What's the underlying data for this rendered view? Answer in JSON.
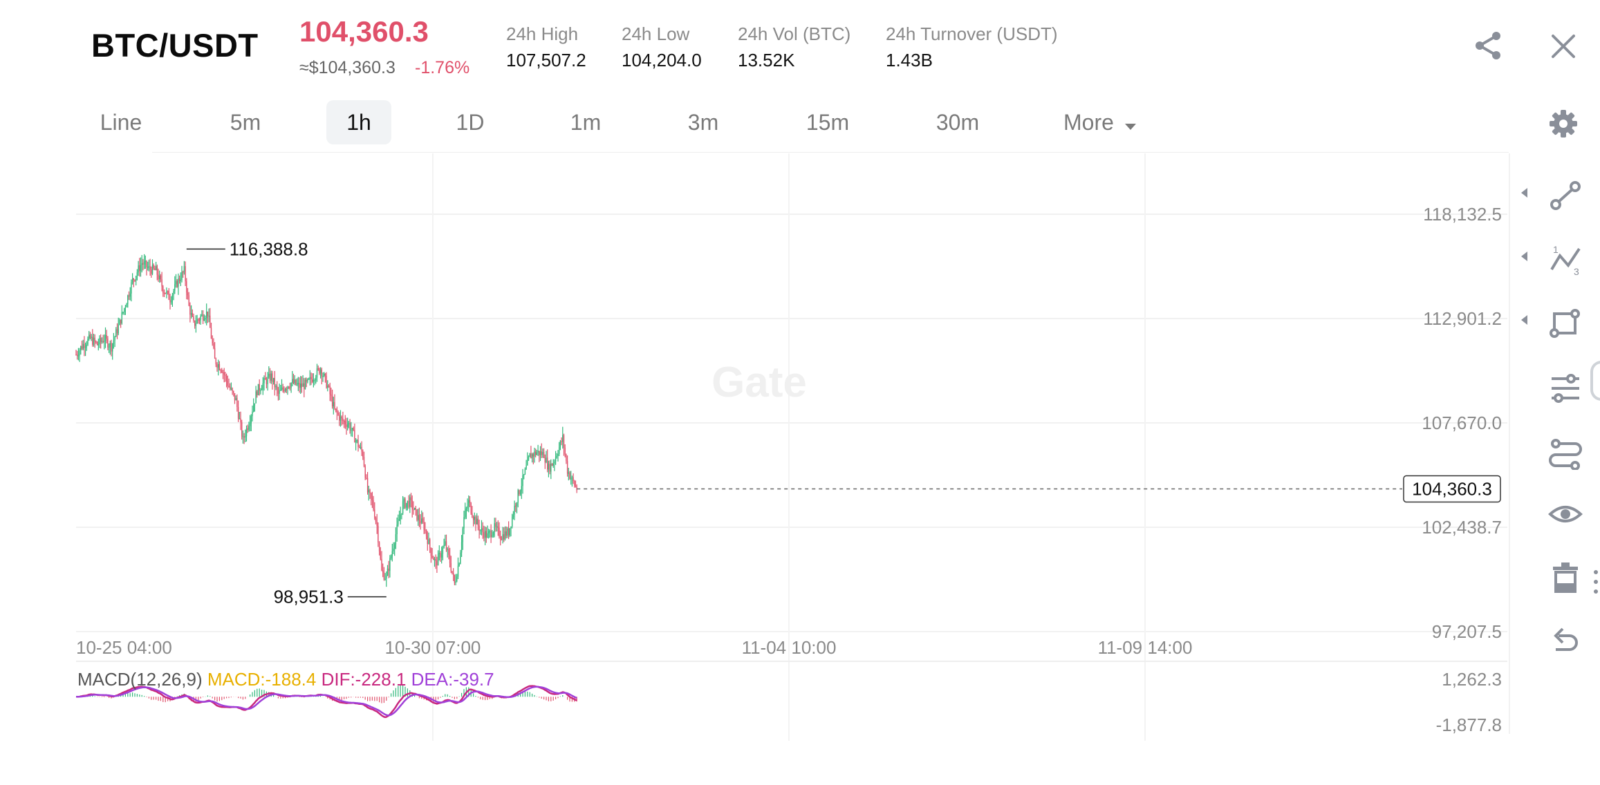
{
  "header": {
    "pair": "BTC/USDT",
    "price": "104,360.3",
    "usd_price": "≈$104,360.3",
    "change": "-1.76%",
    "stats": [
      {
        "label": "24h High",
        "value": "107,507.2"
      },
      {
        "label": "24h Low",
        "value": "104,204.0"
      },
      {
        "label": "24h Vol (BTC)",
        "value": "13.52K"
      },
      {
        "label": "24h Turnover (USDT)",
        "value": "1.43B"
      }
    ]
  },
  "timeframes": [
    "Line",
    "5m",
    "1h",
    "1D",
    "1m",
    "3m",
    "15m",
    "30m",
    "More"
  ],
  "active_timeframe": "1h",
  "icons": {
    "share": "share-icon",
    "close": "close-icon",
    "settings": "gear-icon",
    "tools": [
      "line-tool-icon",
      "fib-tool-icon",
      "shape-tool-icon",
      "indicator-sliders-icon",
      "path-tool-icon",
      "visibility-eye-icon",
      "trash-icon",
      "undo-icon"
    ]
  },
  "watermark": "Gate",
  "colors": {
    "up": "#2fb87a",
    "down": "#e0506a",
    "macd": "#e8b000",
    "dif": "#c8287f",
    "dea": "#a040d8",
    "accent_red": "#e0506a"
  },
  "chart_data": {
    "type": "candlestick",
    "y_ticks": [
      "118,132.5",
      "112,901.2",
      "107,670.0",
      "102,438.7",
      "97,207.5"
    ],
    "x_ticks": [
      "10-25 04:00",
      "10-30 07:00",
      "11-04 10:00",
      "11-09 14:00"
    ],
    "ylim": [
      97207.5,
      118132.5
    ],
    "high_marker": "116,388.8",
    "low_marker": "98,951.3",
    "last_price": "104,360.3",
    "last_value": 104360.3,
    "price_path": [
      {
        "t": 0,
        "p": 111100
      },
      {
        "t": 6,
        "p": 111600
      },
      {
        "t": 12,
        "p": 111900
      },
      {
        "t": 18,
        "p": 111600
      },
      {
        "t": 24,
        "p": 111900
      },
      {
        "t": 30,
        "p": 111500
      },
      {
        "t": 36,
        "p": 112500
      },
      {
        "t": 42,
        "p": 113600
      },
      {
        "t": 48,
        "p": 114800
      },
      {
        "t": 56,
        "p": 115700
      },
      {
        "t": 62,
        "p": 115400
      },
      {
        "t": 68,
        "p": 115300
      },
      {
        "t": 74,
        "p": 114400
      },
      {
        "t": 80,
        "p": 113900
      },
      {
        "t": 86,
        "p": 114700
      },
      {
        "t": 92,
        "p": 115300
      },
      {
        "t": 96,
        "p": 113500
      },
      {
        "t": 100,
        "p": 112600
      },
      {
        "t": 106,
        "p": 113000
      },
      {
        "t": 112,
        "p": 113200
      },
      {
        "t": 118,
        "p": 110800
      },
      {
        "t": 124,
        "p": 110400
      },
      {
        "t": 130,
        "p": 109500
      },
      {
        "t": 136,
        "p": 108800
      },
      {
        "t": 142,
        "p": 106800
      },
      {
        "t": 148,
        "p": 107900
      },
      {
        "t": 154,
        "p": 109300
      },
      {
        "t": 160,
        "p": 109700
      },
      {
        "t": 166,
        "p": 110000
      },
      {
        "t": 172,
        "p": 109100
      },
      {
        "t": 178,
        "p": 109500
      },
      {
        "t": 184,
        "p": 109700
      },
      {
        "t": 190,
        "p": 109500
      },
      {
        "t": 196,
        "p": 109600
      },
      {
        "t": 202,
        "p": 110000
      },
      {
        "t": 208,
        "p": 110400
      },
      {
        "t": 214,
        "p": 109500
      },
      {
        "t": 220,
        "p": 108300
      },
      {
        "t": 226,
        "p": 107800
      },
      {
        "t": 232,
        "p": 107600
      },
      {
        "t": 238,
        "p": 106800
      },
      {
        "t": 244,
        "p": 106100
      },
      {
        "t": 248,
        "p": 104200
      },
      {
        "t": 252,
        "p": 103700
      },
      {
        "t": 256,
        "p": 102500
      },
      {
        "t": 260,
        "p": 100200
      },
      {
        "t": 264,
        "p": 99900
      },
      {
        "t": 268,
        "p": 101000
      },
      {
        "t": 272,
        "p": 102100
      },
      {
        "t": 278,
        "p": 103600
      },
      {
        "t": 284,
        "p": 103700
      },
      {
        "t": 290,
        "p": 103000
      },
      {
        "t": 296,
        "p": 102500
      },
      {
        "t": 302,
        "p": 101200
      },
      {
        "t": 306,
        "p": 100600
      },
      {
        "t": 310,
        "p": 101100
      },
      {
        "t": 314,
        "p": 101600
      },
      {
        "t": 318,
        "p": 100700
      },
      {
        "t": 322,
        "p": 99600
      },
      {
        "t": 326,
        "p": 100800
      },
      {
        "t": 330,
        "p": 102900
      },
      {
        "t": 334,
        "p": 103700
      },
      {
        "t": 338,
        "p": 103000
      },
      {
        "t": 344,
        "p": 102300
      },
      {
        "t": 350,
        "p": 102000
      },
      {
        "t": 356,
        "p": 102400
      },
      {
        "t": 362,
        "p": 102000
      },
      {
        "t": 368,
        "p": 102200
      },
      {
        "t": 374,
        "p": 103700
      },
      {
        "t": 380,
        "p": 104800
      },
      {
        "t": 386,
        "p": 106000
      },
      {
        "t": 392,
        "p": 106200
      },
      {
        "t": 398,
        "p": 106100
      },
      {
        "t": 402,
        "p": 105400
      },
      {
        "t": 406,
        "p": 105700
      },
      {
        "t": 410,
        "p": 106300
      },
      {
        "t": 414,
        "p": 106900
      },
      {
        "t": 418,
        "p": 105300
      },
      {
        "t": 422,
        "p": 104800
      },
      {
        "t": 426,
        "p": 104360
      }
    ],
    "macd": {
      "label": "MACD(12,26,9)",
      "macd_text": "MACD:-188.4",
      "dif_text": "DIF:-228.1",
      "dea_text": "DEA:-39.7",
      "y_ticks": [
        "1,262.3",
        "-1,877.8"
      ],
      "ylim": [
        -1877.8,
        1262.3
      ]
    }
  }
}
